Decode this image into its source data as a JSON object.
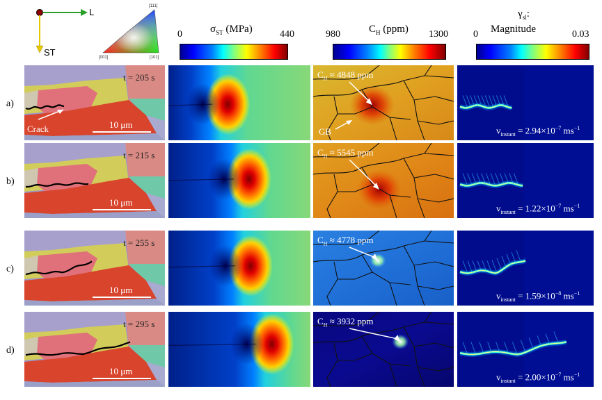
{
  "axes_icon": {
    "x_label": "L",
    "y_label": "ST"
  },
  "ipf": {
    "top": "[111]",
    "left": "[001]",
    "right": "[101]"
  },
  "stress_bar": {
    "title": "σ",
    "sub": "ST",
    "unit": " (MPa)",
    "min": "0",
    "max": "440"
  },
  "hydrogen_bar": {
    "title": "C",
    "sub": "H",
    "unit": " (ppm)",
    "min": "980",
    "max": "1300"
  },
  "gamma_bar": {
    "title": "γ",
    "sub": "sl",
    "title2": ":",
    "line2": "Magnitude",
    "min": "0",
    "max": "0.03"
  },
  "rows": [
    {
      "label": "a)",
      "time": "t = 205 s",
      "scale": "10 μm",
      "ch_value": "4848 ppm",
      "v_main": "v",
      "v_sub": "instant",
      "v_val": " = 2.94×10",
      "v_exp": "−7",
      "v_unit": " ms",
      "v_exp2": "−1"
    },
    {
      "label": "b)",
      "time": "t = 215 s",
      "scale": "10 μm",
      "ch_value": "5545 ppm",
      "v_main": "v",
      "v_sub": "instant",
      "v_val": " = 1.22×10",
      "v_exp": "−7",
      "v_unit": " ms",
      "v_exp2": "−1"
    },
    {
      "label": "c)",
      "time": "t = 255 s",
      "scale": "10 μm",
      "ch_value": "4778 ppm",
      "v_main": "v",
      "v_sub": "instant",
      "v_val": " = 1.59×10",
      "v_exp": "−8",
      "v_unit": " ms",
      "v_exp2": "−1"
    },
    {
      "label": "d)",
      "time": "t = 295 s",
      "scale": "10 μm",
      "ch_value": "3932 ppm",
      "v_main": "v",
      "v_sub": "instant",
      "v_val": " = 2.00×10",
      "v_exp": "−7",
      "v_unit": " ms",
      "v_exp2": "−1"
    }
  ],
  "annotations": {
    "crack": "Crack",
    "gb": "GB",
    "ch_prefix": "C",
    "ch_sub": "H",
    "ch_approx": " ≈ "
  },
  "colors": {
    "grain_pink": "#e0707a",
    "grain_red": "#d8442c",
    "grain_yellow": "#d2cc5a",
    "grain_purple": "#9c96c8",
    "grain_teal": "#6fc8a8",
    "crack": "#000000"
  }
}
